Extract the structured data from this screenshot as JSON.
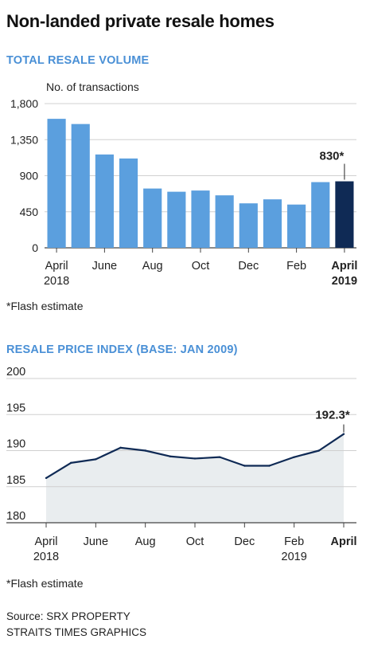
{
  "title": "Non-landed private resale homes",
  "chart_data": [
    {
      "type": "bar",
      "title": "TOTAL RESALE VOLUME",
      "ylabel": "No. of transactions",
      "ylim": [
        0,
        1800
      ],
      "yticks": [
        0,
        450,
        900,
        1350,
        1800
      ],
      "ytick_labels": [
        "0",
        "450",
        "900",
        "1,350",
        "1,800"
      ],
      "categories": [
        "Apr 2018",
        "May 2018",
        "Jun 2018",
        "Jul 2018",
        "Aug 2018",
        "Sep 2018",
        "Oct 2018",
        "Nov 2018",
        "Dec 2018",
        "Jan 2019",
        "Feb 2019",
        "Mar 2019",
        "Apr 2019"
      ],
      "values": [
        1610,
        1545,
        1165,
        1115,
        740,
        700,
        715,
        655,
        555,
        605,
        540,
        820,
        830
      ],
      "xtick_labels": [
        {
          "index": 0,
          "line1": "April",
          "line2": "2018"
        },
        {
          "index": 2,
          "line1": "June",
          "line2": ""
        },
        {
          "index": 4,
          "line1": "Aug",
          "line2": ""
        },
        {
          "index": 6,
          "line1": "Oct",
          "line2": ""
        },
        {
          "index": 8,
          "line1": "Dec",
          "line2": ""
        },
        {
          "index": 10,
          "line1": "Feb",
          "line2": ""
        },
        {
          "index": 12,
          "line1": "April",
          "line2": "2019",
          "bold": true
        }
      ],
      "annotation": {
        "index": 12,
        "text": "830*"
      },
      "colors": {
        "bar": "#5b9fde",
        "highlight": "#0f2a55",
        "axis": "#444444"
      },
      "footnote": "*Flash estimate"
    },
    {
      "type": "area",
      "title": "RESALE PRICE INDEX (BASE: JAN 2009)",
      "ylim": [
        180,
        200
      ],
      "yticks": [
        180,
        185,
        190,
        195,
        200
      ],
      "ytick_labels": [
        "180",
        "185",
        "190",
        "195",
        "200"
      ],
      "x": [
        "Apr 2018",
        "May 2018",
        "Jun 2018",
        "Jul 2018",
        "Aug 2018",
        "Sep 2018",
        "Oct 2018",
        "Nov 2018",
        "Dec 2018",
        "Jan 2019",
        "Feb 2019",
        "Mar 2019",
        "Apr 2019"
      ],
      "values": [
        186.2,
        188.3,
        188.8,
        190.4,
        190.0,
        189.2,
        188.9,
        189.1,
        187.9,
        187.9,
        189.1,
        190.0,
        192.3
      ],
      "xtick_labels": [
        {
          "index": 0,
          "line1": "April",
          "line2": "2018"
        },
        {
          "index": 2,
          "line1": "June",
          "line2": ""
        },
        {
          "index": 4,
          "line1": "Aug",
          "line2": ""
        },
        {
          "index": 6,
          "line1": "Oct",
          "line2": ""
        },
        {
          "index": 8,
          "line1": "Dec",
          "line2": ""
        },
        {
          "index": 10,
          "line1": "Feb",
          "line2": "2019"
        },
        {
          "index": 12,
          "line1": "April",
          "line2": "",
          "bold": true
        }
      ],
      "annotation": {
        "index": 12,
        "text": "192.3*"
      },
      "colors": {
        "line": "#0f2a55",
        "fill": "#e9edef",
        "axis": "#444444"
      },
      "footnote": "*Flash estimate"
    }
  ],
  "source_lines": [
    "Source: SRX PROPERTY",
    "STRAITS TIMES GRAPHICS"
  ]
}
